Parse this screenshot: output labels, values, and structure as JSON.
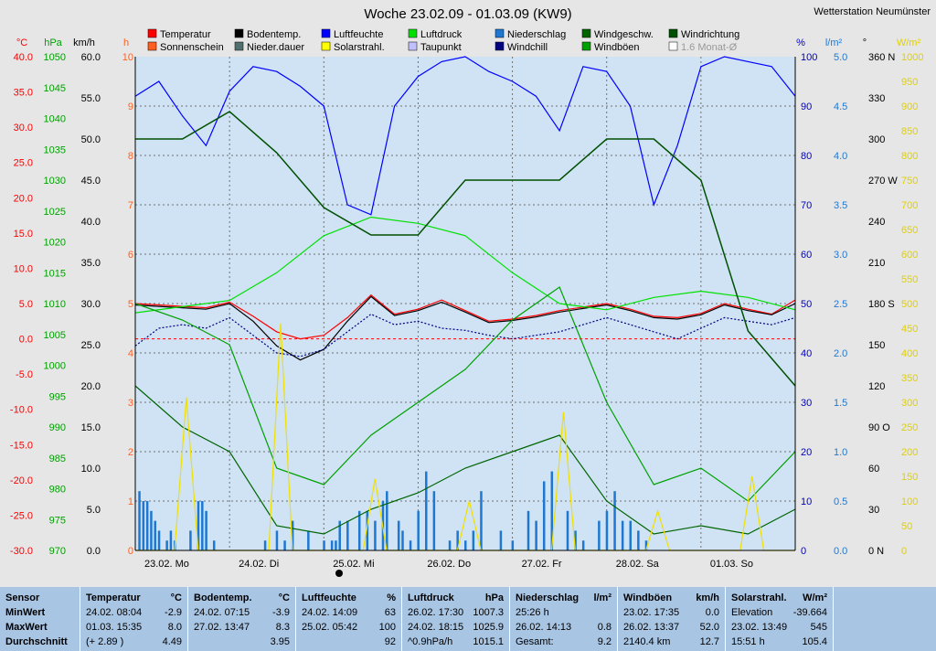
{
  "title": "Woche 23.02.09 - 01.03.09 (KW9)",
  "station": "Wetterstation Neumünster",
  "legend": [
    {
      "label": "Temperatur",
      "color": "#ff0000"
    },
    {
      "label": "Bodentemp.",
      "color": "#000000"
    },
    {
      "label": "Luftfeuchte",
      "color": "#0000ff"
    },
    {
      "label": "Luftdruck",
      "color": "#00e000"
    },
    {
      "label": "Niederschlag",
      "color": "#1e78d2"
    },
    {
      "label": "Windgeschw.",
      "color": "#006400"
    },
    {
      "label": "Windrichtung",
      "color": "#005000"
    },
    {
      "label": "Sonnenschein",
      "color": "#ff6020"
    },
    {
      "label": "Nieder.dauer",
      "color": "#507070"
    },
    {
      "label": "Solarstrahl.",
      "color": "#ffff00"
    },
    {
      "label": "Taupunkt",
      "color": "#c0c0ff"
    },
    {
      "label": "Windchill",
      "color": "#000080"
    },
    {
      "label": "Windböen",
      "color": "#00a000"
    },
    {
      "label": "1.6 Monat-Ø",
      "color": "#ffffff"
    }
  ],
  "axes": {
    "temp": {
      "unit": "°C",
      "ticks": [
        "40.0",
        "35.0",
        "30.0",
        "25.0",
        "20.0",
        "15.0",
        "10.0",
        "5.0",
        "0.0",
        "-5.0",
        "-10.0",
        "-15.0",
        "-20.0",
        "-25.0",
        "-30.0"
      ],
      "color": "#ff0000"
    },
    "hpa": {
      "unit": "hPa",
      "ticks": [
        "1050",
        "1045",
        "1040",
        "1035",
        "1030",
        "1025",
        "1020",
        "1015",
        "1010",
        "1005",
        "1000",
        "995",
        "990",
        "985",
        "980",
        "975",
        "970"
      ],
      "color": "#00a000"
    },
    "kmh": {
      "unit": "km/h",
      "ticks": [
        "60.0",
        "55.0",
        "50.0",
        "45.0",
        "40.0",
        "35.0",
        "30.0",
        "25.0",
        "20.0",
        "15.0",
        "10.0",
        "5.0",
        "0.0"
      ],
      "color": "#000000"
    },
    "hours": {
      "unit": "h",
      "ticks": [
        "10",
        "9",
        "8",
        "7",
        "6",
        "5",
        "4",
        "3",
        "2",
        "1",
        "0"
      ],
      "color": "#ff6020"
    },
    "percent": {
      "unit": "%",
      "ticks": [
        "100",
        "90",
        "80",
        "70",
        "60",
        "50",
        "40",
        "30",
        "20",
        "10",
        "0"
      ],
      "color": "#0000c0"
    },
    "rain": {
      "unit": "l/m²",
      "ticks": [
        "5.0",
        "4.5",
        "4.0",
        "3.5",
        "3.0",
        "2.5",
        "2.0",
        "1.5",
        "1.0",
        "0.5",
        "0.0"
      ],
      "color": "#1e78d2"
    },
    "dir": {
      "unit": "°",
      "ticks": [
        "360 N",
        "330",
        "300",
        "270 W",
        "240",
        "210",
        "180 S",
        "150",
        "120",
        "90 O",
        "60",
        "30",
        "0 N"
      ],
      "color": "#000000"
    },
    "solar": {
      "unit": "W/m²",
      "ticks": [
        "1000",
        "950",
        "900",
        "850",
        "800",
        "750",
        "700",
        "650",
        "600",
        "550",
        "500",
        "450",
        "400",
        "350",
        "300",
        "250",
        "200",
        "150",
        "100",
        "50",
        "0"
      ],
      "color": "#e0d000"
    }
  },
  "x_labels": [
    "23.02. Mo",
    "24.02. Di",
    "25.02. Mi",
    "26.02. Do",
    "27.02. Fr",
    "28.02. Sa",
    "01.03. So"
  ],
  "chart_data": {
    "type": "line",
    "title": "Woche 23.02.09 - 01.03.09 (KW9)",
    "x_unit": "hours since 23.02. 00:00",
    "series": [
      {
        "name": "Temperatur",
        "unit": "°C",
        "x": [
          0,
          6,
          12,
          18,
          24,
          30,
          36,
          42,
          48,
          54,
          60,
          66,
          72,
          78,
          84,
          90,
          96,
          102,
          108,
          114,
          120,
          126,
          132,
          138,
          144,
          150,
          156,
          162,
          168
        ],
        "values": [
          5.0,
          4.8,
          4.6,
          4.4,
          5.2,
          3.2,
          1.0,
          0.0,
          0.5,
          3.0,
          6.2,
          3.5,
          4.2,
          5.5,
          4.0,
          2.5,
          2.8,
          3.3,
          4.0,
          4.5,
          5.0,
          4.2,
          3.2,
          3.0,
          3.6,
          5.0,
          4.2,
          3.5,
          5.5
        ]
      },
      {
        "name": "Bodentemp.",
        "unit": "°C",
        "x": [
          0,
          6,
          12,
          18,
          24,
          30,
          36,
          42,
          48,
          54,
          60,
          66,
          72,
          78,
          84,
          90,
          96,
          102,
          108,
          114,
          120,
          126,
          132,
          138,
          144,
          150,
          156,
          162,
          168
        ],
        "values": [
          4.8,
          4.6,
          4.4,
          4.2,
          5.0,
          2.5,
          -1.0,
          -3.0,
          -1.5,
          2.5,
          6.0,
          3.3,
          4.0,
          5.2,
          3.8,
          2.3,
          2.6,
          3.1,
          3.8,
          4.3,
          4.8,
          4.0,
          3.0,
          2.8,
          3.4,
          4.8,
          4.0,
          3.4,
          5.0
        ]
      },
      {
        "name": "Windchill",
        "unit": "°C",
        "x": [
          0,
          6,
          12,
          18,
          24,
          30,
          36,
          42,
          48,
          54,
          60,
          66,
          72,
          78,
          84,
          90,
          96,
          102,
          108,
          114,
          120,
          126,
          132,
          138,
          144,
          150,
          156,
          162,
          168
        ],
        "values": [
          -1.0,
          1.5,
          2.0,
          1.5,
          3.0,
          0.5,
          -2.0,
          -2.5,
          -1.5,
          1.0,
          3.5,
          2.0,
          2.5,
          1.5,
          1.2,
          0.5,
          0.0,
          0.5,
          1.0,
          2.0,
          3.0,
          2.0,
          1.0,
          0.0,
          1.5,
          3.0,
          2.5,
          2.0,
          3.0
        ]
      },
      {
        "name": "Luftfeuchte",
        "unit": "%",
        "x": [
          0,
          6,
          12,
          18,
          24,
          30,
          36,
          42,
          48,
          54,
          60,
          66,
          72,
          78,
          84,
          90,
          96,
          102,
          108,
          114,
          120,
          126,
          132,
          138,
          144,
          150,
          156,
          162,
          168
        ],
        "values": [
          92,
          95,
          88,
          82,
          93,
          98,
          97,
          94,
          90,
          70,
          68,
          90,
          96,
          99,
          100,
          97,
          95,
          92,
          85,
          98,
          97,
          90,
          70,
          82,
          98,
          100,
          99,
          98,
          92
        ]
      },
      {
        "name": "Luftdruck",
        "unit": "hPa",
        "x": [
          0,
          12,
          24,
          36,
          48,
          60,
          72,
          84,
          96,
          108,
          120,
          132,
          144,
          156,
          168
        ],
        "values": [
          1008.5,
          1009.5,
          1010.5,
          1015,
          1021,
          1024,
          1023,
          1021,
          1015,
          1010,
          1009,
          1011,
          1012,
          1011,
          1009
        ]
      },
      {
        "name": "Windgeschw.",
        "unit": "km/h",
        "x": [
          0,
          12,
          24,
          36,
          48,
          60,
          72,
          84,
          96,
          108,
          120,
          132,
          144,
          156,
          168
        ],
        "values": [
          20,
          15,
          12,
          3,
          2,
          5,
          7,
          10,
          12,
          14,
          6,
          2,
          3,
          2,
          5
        ]
      },
      {
        "name": "Windböen",
        "unit": "km/h",
        "x": [
          0,
          12,
          24,
          36,
          48,
          60,
          72,
          84,
          96,
          108,
          120,
          132,
          144,
          156,
          168
        ],
        "values": [
          30,
          28,
          25,
          10,
          8,
          14,
          18,
          22,
          28,
          32,
          18,
          8,
          10,
          6,
          12
        ]
      },
      {
        "name": "Windrichtung",
        "unit": "°",
        "x": [
          0,
          12,
          24,
          36,
          48,
          60,
          72,
          84,
          96,
          108,
          120,
          132,
          144,
          156,
          168
        ],
        "values": [
          300,
          300,
          320,
          290,
          250,
          230,
          230,
          270,
          270,
          270,
          300,
          300,
          270,
          160,
          120
        ]
      },
      {
        "name": "Solarstrahl.",
        "unit": "W/m²",
        "x": [
          0,
          10,
          13,
          16,
          24,
          34,
          37,
          40,
          48,
          58,
          61,
          64,
          72,
          82,
          85,
          88,
          96,
          106,
          109,
          112,
          120,
          130,
          133,
          136,
          144,
          154,
          157,
          160,
          168
        ],
        "values": [
          0,
          0,
          310,
          0,
          0,
          0,
          460,
          0,
          0,
          0,
          145,
          0,
          0,
          0,
          100,
          0,
          0,
          0,
          280,
          0,
          0,
          0,
          80,
          0,
          0,
          0,
          150,
          0,
          0
        ]
      },
      {
        "name": "Niederschlag",
        "unit": "l/m²",
        "x": [
          1,
          2,
          3,
          4,
          5,
          6,
          8,
          9,
          10,
          14,
          16,
          17,
          18,
          20,
          33,
          36,
          38,
          40,
          44,
          48,
          50,
          51,
          52,
          54,
          57,
          59,
          61,
          63,
          64,
          67,
          68,
          70,
          72,
          74,
          76,
          80,
          82,
          84,
          86,
          88,
          93,
          96,
          100,
          102,
          104,
          106,
          110,
          112,
          114,
          118,
          120,
          122,
          124,
          126,
          128,
          130
        ],
        "values": [
          0.6,
          0.5,
          0.5,
          0.4,
          0.3,
          0.2,
          0.1,
          0.2,
          0.1,
          0.2,
          0.5,
          0.5,
          0.4,
          0.1,
          0.1,
          0.2,
          0.1,
          0.3,
          0.2,
          0.1,
          0.1,
          0.1,
          0.3,
          0.3,
          0.4,
          0.4,
          0.3,
          0.5,
          0.6,
          0.3,
          0.2,
          0.1,
          0.4,
          0.8,
          0.6,
          0.1,
          0.2,
          0.1,
          0.2,
          0.6,
          0.2,
          0.1,
          0.4,
          0.3,
          0.7,
          0.8,
          0.4,
          0.2,
          0.1,
          0.3,
          0.4,
          0.6,
          0.3,
          0.3,
          0.2,
          0.1
        ]
      }
    ],
    "ylim_temp": [
      -30,
      40
    ],
    "ylim_hpa": [
      970,
      1050
    ],
    "ylim_kmh": [
      0,
      60
    ],
    "ylim_percent": [
      0,
      100
    ],
    "ylim_rain": [
      0,
      5
    ],
    "ylim_dir": [
      0,
      360
    ],
    "ylim_solar": [
      0,
      1000
    ],
    "grid": true,
    "legend_position": "top"
  },
  "stats": [
    {
      "title": "Sensor",
      "unit": "",
      "rows": [
        [
          "MinWert",
          ""
        ],
        [
          "MaxWert",
          ""
        ],
        [
          "Durchschnitt",
          ""
        ]
      ]
    },
    {
      "title": "Temperatur",
      "unit": "°C",
      "rows": [
        [
          "24.02.  08:04",
          "-2.9"
        ],
        [
          "01.03.  15:35",
          "8.0"
        ],
        [
          "(+ 2.89 )",
          "4.49"
        ]
      ]
    },
    {
      "title": "Bodentemp.",
      "unit": "°C",
      "rows": [
        [
          "24.02.  07:15",
          "-3.9"
        ],
        [
          "27.02.  13:47",
          "8.3"
        ],
        [
          "",
          "3.95"
        ]
      ]
    },
    {
      "title": "Luftfeuchte",
      "unit": "%",
      "rows": [
        [
          "24.02.  14:09",
          "63"
        ],
        [
          "25.02.  05:42",
          "100"
        ],
        [
          "",
          "92"
        ]
      ]
    },
    {
      "title": "Luftdruck",
      "unit": "hPa",
      "rows": [
        [
          "26.02.  17:30",
          "1007.3"
        ],
        [
          "24.02.  18:15",
          "1025.9"
        ],
        [
          "^0.9hPa/h",
          "1015.1"
        ]
      ]
    },
    {
      "title": "Niederschlag",
      "unit": "l/m²",
      "rows": [
        [
          "25:26 h",
          ""
        ],
        [
          "26.02.  14:13",
          "0.8"
        ],
        [
          "Gesamt:",
          "9.2"
        ]
      ]
    },
    {
      "title": "Windböen",
      "unit": "km/h",
      "rows": [
        [
          "23.02.  17:35",
          "0.0"
        ],
        [
          "26.02.  13:37",
          "52.0"
        ],
        [
          "2140.4 km",
          "12.7"
        ]
      ]
    },
    {
      "title": "Solarstrahl.",
      "unit": "W/m²",
      "rows": [
        [
          "Elevation",
          "-39.664"
        ],
        [
          "23.02.  13:49",
          "545"
        ],
        [
          "15:51 h",
          "105.4"
        ]
      ]
    }
  ]
}
